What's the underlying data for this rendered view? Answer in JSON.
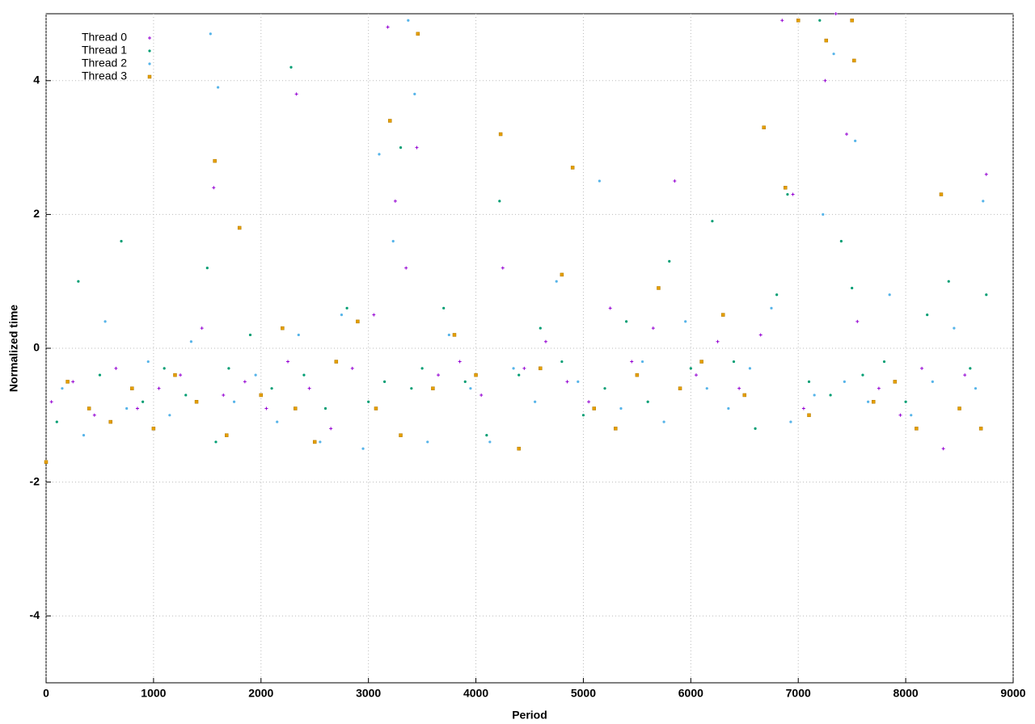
{
  "chart_data": {
    "type": "scatter",
    "xlabel": "Period",
    "ylabel": "Normalized time",
    "xlim": [
      0,
      9000
    ],
    "ylim": [
      -5,
      5
    ],
    "xticks": [
      0,
      1000,
      2000,
      3000,
      4000,
      5000,
      6000,
      7000,
      8000,
      9000
    ],
    "yticks": [
      -4,
      -2,
      0,
      2,
      4
    ],
    "grid": true,
    "legend": "top-left",
    "series": [
      {
        "name": "Thread 0",
        "color": "#9400d3",
        "marker": "plus",
        "x": [
          50,
          250,
          450,
          650,
          850,
          1050,
          1250,
          1450,
          1560,
          1650,
          1850,
          2050,
          2250,
          2330,
          2450,
          2650,
          2850,
          3050,
          3180,
          3250,
          3350,
          3450,
          3650,
          3850,
          4050,
          4250,
          4450,
          4650,
          4850,
          5050,
          5250,
          5450,
          5650,
          5850,
          6050,
          6250,
          6450,
          6650,
          6850,
          6950,
          7050,
          7250,
          7350,
          7450,
          7550,
          7750,
          7950,
          8150,
          8350,
          8550,
          8750
        ],
        "values": [
          -0.8,
          -0.5,
          -1.0,
          -0.3,
          -0.9,
          -0.6,
          -0.4,
          0.3,
          2.4,
          -0.7,
          -0.5,
          -0.9,
          -0.2,
          3.8,
          -0.6,
          -1.2,
          -0.3,
          0.5,
          4.8,
          2.2,
          1.2,
          3.0,
          -0.4,
          -0.2,
          -0.7,
          1.2,
          -0.3,
          0.1,
          -0.5,
          -0.8,
          0.6,
          -0.2,
          0.3,
          2.5,
          -0.4,
          0.1,
          -0.6,
          0.2,
          4.9,
          2.3,
          -0.9,
          4.0,
          5.0,
          3.2,
          0.4,
          -0.6,
          -1.0,
          -0.3,
          -1.5,
          -0.4,
          2.6
        ]
      },
      {
        "name": "Thread 1",
        "color": "#009e73",
        "marker": "dot",
        "x": [
          100,
          300,
          500,
          700,
          900,
          1100,
          1300,
          1500,
          1580,
          1700,
          1900,
          2100,
          2280,
          2400,
          2600,
          2800,
          3000,
          3150,
          3300,
          3400,
          3500,
          3700,
          3900,
          4100,
          4220,
          4400,
          4600,
          4800,
          5000,
          5200,
          5400,
          5600,
          5800,
          6000,
          6200,
          6400,
          6600,
          6800,
          6900,
          7100,
          7200,
          7300,
          7400,
          7500,
          7600,
          7800,
          8000,
          8200,
          8400,
          8600,
          8750
        ],
        "values": [
          -1.1,
          1.0,
          -0.4,
          1.6,
          -0.8,
          -0.3,
          -0.7,
          1.2,
          -1.4,
          -0.3,
          0.2,
          -0.6,
          4.2,
          -0.4,
          -0.9,
          0.6,
          -0.8,
          -0.5,
          3.0,
          -0.6,
          -0.3,
          0.6,
          -0.5,
          -1.3,
          2.2,
          -0.4,
          0.3,
          -0.2,
          -1.0,
          -0.6,
          0.4,
          -0.8,
          1.3,
          -0.3,
          1.9,
          -0.2,
          -1.2,
          0.8,
          2.3,
          -0.5,
          4.9,
          -0.7,
          1.6,
          0.9,
          -0.4,
          -0.2,
          -0.8,
          0.5,
          1.0,
          -0.3,
          0.8
        ]
      },
      {
        "name": "Thread 2",
        "color": "#56b4e9",
        "marker": "dot",
        "x": [
          150,
          350,
          550,
          750,
          950,
          1150,
          1350,
          1530,
          1600,
          1750,
          1950,
          2150,
          2350,
          2550,
          2750,
          2950,
          3100,
          3230,
          3370,
          3430,
          3550,
          3750,
          3950,
          4130,
          4350,
          4550,
          4750,
          4950,
          5150,
          5350,
          5550,
          5750,
          5950,
          6150,
          6350,
          6550,
          6750,
          6930,
          7150,
          7230,
          7330,
          7430,
          7530,
          7650,
          7850,
          8050,
          8250,
          8450,
          8650,
          8720
        ],
        "values": [
          -0.6,
          -1.3,
          0.4,
          -0.9,
          -0.2,
          -1.0,
          0.1,
          4.7,
          3.9,
          -0.8,
          -0.4,
          -1.1,
          0.2,
          -1.4,
          0.5,
          -1.5,
          2.9,
          1.6,
          4.9,
          3.8,
          -1.4,
          0.2,
          -0.6,
          -1.4,
          -0.3,
          -0.8,
          1.0,
          -0.5,
          2.5,
          -0.9,
          -0.2,
          -1.1,
          0.4,
          -0.6,
          -0.9,
          -0.3,
          0.6,
          -1.1,
          -0.7,
          2.0,
          4.4,
          -0.5,
          3.1,
          -0.8,
          0.8,
          -1.0,
          -0.5,
          0.3,
          -0.6,
          2.2
        ]
      },
      {
        "name": "Thread 3",
        "color": "#e69f00",
        "marker": "square",
        "x": [
          0,
          200,
          400,
          600,
          800,
          1000,
          1200,
          1400,
          1570,
          1680,
          1800,
          2000,
          2200,
          2320,
          2500,
          2700,
          2900,
          3070,
          3200,
          3300,
          3460,
          3600,
          3800,
          4000,
          4230,
          4400,
          4600,
          4800,
          4900,
          5100,
          5300,
          5500,
          5700,
          5900,
          6100,
          6300,
          6500,
          6680,
          6880,
          7000,
          7100,
          7260,
          7500,
          7520,
          7700,
          7900,
          8100,
          8330,
          8500,
          8700
        ],
        "values": [
          -1.7,
          -0.5,
          -0.9,
          -1.1,
          -0.6,
          -1.2,
          -0.4,
          -0.8,
          2.8,
          -1.3,
          1.8,
          -0.7,
          0.3,
          -0.9,
          -1.4,
          -0.2,
          0.4,
          -0.9,
          3.4,
          -1.3,
          4.7,
          -0.6,
          0.2,
          -0.4,
          3.2,
          -1.5,
          -0.3,
          1.1,
          2.7,
          -0.9,
          -1.2,
          -0.4,
          0.9,
          -0.6,
          -0.2,
          0.5,
          -0.7,
          3.3,
          2.4,
          4.9,
          -1.0,
          4.6,
          4.9,
          4.3,
          -0.8,
          -0.5,
          -1.2,
          2.3,
          -0.9,
          -1.2
        ]
      }
    ]
  }
}
